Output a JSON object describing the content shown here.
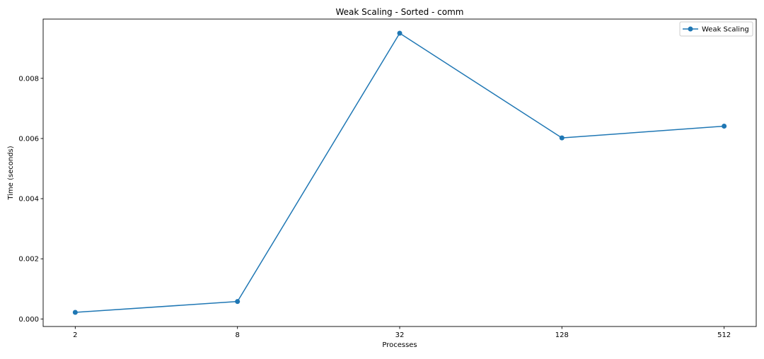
{
  "chart_data": {
    "type": "line",
    "title": "Weak Scaling - Sorted - comm",
    "xlabel": "Processes",
    "ylabel": "Time (seconds)",
    "x_scale": "log2",
    "categories": [
      "2",
      "8",
      "32",
      "128",
      "512"
    ],
    "x": [
      2,
      8,
      32,
      128,
      512
    ],
    "series": [
      {
        "name": "Weak Scaling",
        "values": [
          0.00022,
          0.00058,
          0.0095,
          0.00602,
          0.00641
        ],
        "color": "#1f77b4",
        "marker": "circle"
      }
    ],
    "yticks": [
      0.0,
      0.002,
      0.004,
      0.006,
      0.008
    ],
    "ytick_labels": [
      "0.000",
      "0.002",
      "0.004",
      "0.006",
      "0.008"
    ],
    "ylim": [
      -0.00025,
      0.00997
    ],
    "grid": false,
    "legend_position": "top-right"
  }
}
